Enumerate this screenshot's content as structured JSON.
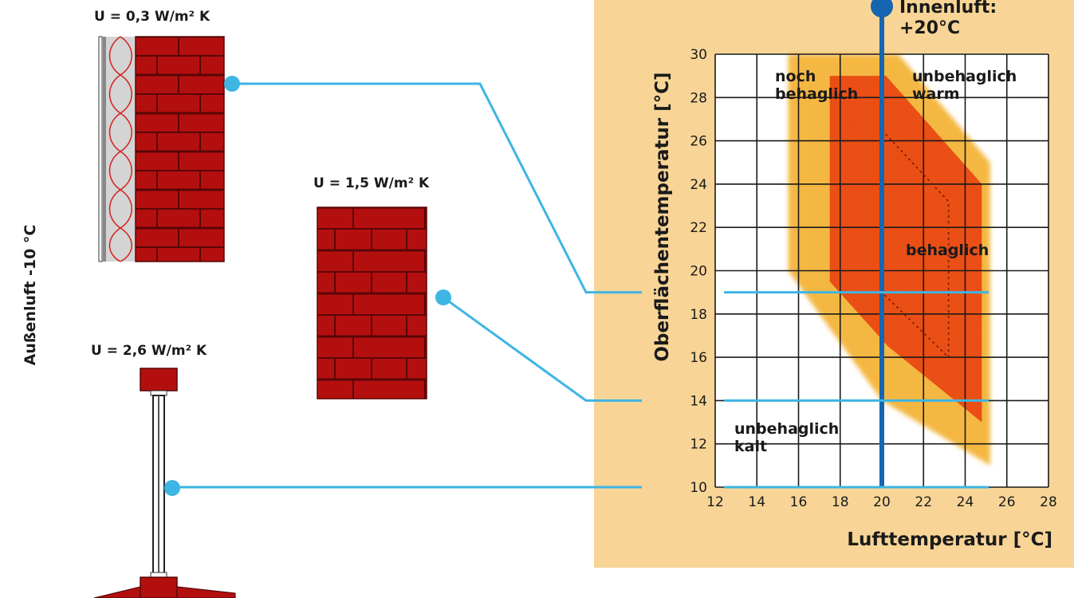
{
  "outside": {
    "label": "Außenluft -10 °C"
  },
  "walls": [
    {
      "u_label": "U = 0,3 W/m² K",
      "surface_temp": 19
    },
    {
      "u_label": "U = 1,5 W/m² K",
      "surface_temp": 14
    },
    {
      "u_label": "U = 2,6 W/m² K",
      "surface_temp": 10
    }
  ],
  "indoor": {
    "line1": "Innenluft:",
    "line2": "+20°C",
    "air_temp": 20
  },
  "chart_data": {
    "type": "area",
    "xlabel": "Lufttemperatur [°C]",
    "ylabel": "Oberflächentemperatur [°C]",
    "xlim": [
      12,
      28
    ],
    "ylim": [
      10,
      30
    ],
    "x_ticks": [
      "12",
      "14",
      "16",
      "18",
      "20",
      "22",
      "24",
      "26",
      "28"
    ],
    "y_ticks": [
      "10",
      "12",
      "14",
      "16",
      "18",
      "20",
      "22",
      "24",
      "26",
      "28",
      "30"
    ],
    "grid": true,
    "regions": [
      {
        "name": "noch behaglich",
        "polygon": [
          [
            15.5,
            30
          ],
          [
            20.8,
            30
          ],
          [
            25.2,
            25
          ],
          [
            25.2,
            11
          ],
          [
            20,
            14
          ],
          [
            15.5,
            20
          ]
        ]
      },
      {
        "name": "behaglich",
        "polygon": [
          [
            17.5,
            29
          ],
          [
            20.2,
            29
          ],
          [
            24.8,
            24
          ],
          [
            24.8,
            13
          ],
          [
            20.3,
            16.5
          ],
          [
            17.5,
            19.5
          ]
        ]
      }
    ],
    "dotted_zone": [
      [
        20,
        26.5
      ],
      [
        23.2,
        23.2
      ],
      [
        23.2,
        16
      ],
      [
        20,
        19
      ]
    ],
    "annotations": [
      {
        "text_line1": "noch",
        "text_line2": "behaglich"
      },
      {
        "text_line1": "unbehaglich",
        "text_line2": "warm"
      },
      {
        "text_line1": "behaglich",
        "text_line2": ""
      },
      {
        "text_line1": "unbehaglich",
        "text_line2": "kalt"
      }
    ],
    "horizontal_lines": [
      19,
      14,
      10
    ],
    "vertical_line": 20
  },
  "colors": {
    "panel": "#f8d596",
    "brick": "#b40f0f",
    "mortar": "#5a0606",
    "connector": "#3eb5e3",
    "indoor_line": "#1565b0",
    "zone_outer": "#f2a31e",
    "zone_inner": "#e8400f"
  }
}
